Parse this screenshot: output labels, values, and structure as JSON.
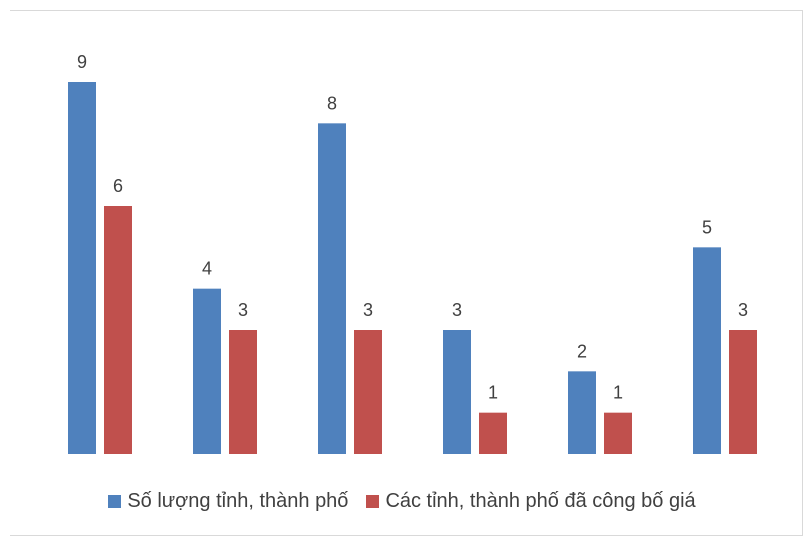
{
  "chart_data": {
    "type": "bar",
    "categories": [
      "",
      "",
      "",
      "",
      "",
      ""
    ],
    "series": [
      {
        "name": "Số lượng tỉnh, thành phố",
        "values": [
          9,
          4,
          8,
          3,
          2,
          5
        ],
        "color": "#4f81bd"
      },
      {
        "name": "Các tỉnh, thành phố đã công bố giá",
        "values": [
          6,
          3,
          3,
          1,
          1,
          3
        ],
        "color": "#c0504d"
      }
    ],
    "ylim": [
      0,
      9
    ],
    "grid": false,
    "data_labels": true,
    "legend_position": "bottom"
  }
}
